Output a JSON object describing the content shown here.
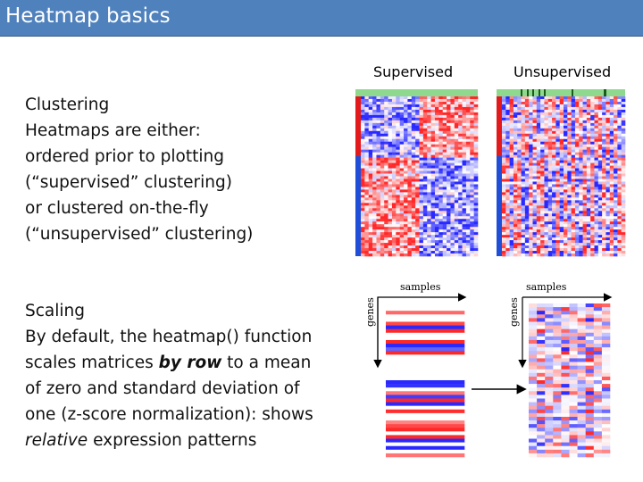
{
  "header": {
    "title": "Heatmap basics"
  },
  "figure": {
    "supervised_label": "Supervised",
    "unsupervised_label": "Unsupervised",
    "left_samples": "samples",
    "left_genes": "genes",
    "right_samples": "samples",
    "right_genes": "genes"
  },
  "clustering": {
    "heading": "Clustering",
    "lines": [
      "Heatmaps are either:",
      "ordered prior to plotting",
      "(“supervised” clustering)",
      "or clustered on-the-fly",
      "(“unsupervised” clustering)"
    ]
  },
  "scaling": {
    "heading": "Scaling",
    "line1": "By default, the heatmap() function",
    "line2": {
      "before": "scales matrices ",
      "emph": "by row",
      "after": " to a mean"
    },
    "line3": "of zero and standard deviation of",
    "line4": "one (z-score normalization): shows",
    "line5": {
      "emph": "relative",
      "after": " expression patterns"
    }
  }
}
